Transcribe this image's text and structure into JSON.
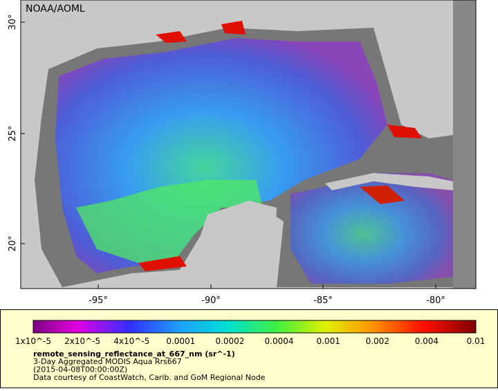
{
  "map": {
    "credit": "NOAA/AOML",
    "lat_labels": [
      "30°",
      "25°",
      "20°"
    ],
    "lon_labels": [
      "-95°",
      "-90°",
      "-85°",
      "-80°"
    ]
  },
  "legend": {
    "colorbar_labels": [
      "1x10^-5",
      "2x10^-5",
      "4x10^-5",
      "0.0001",
      "0.0002",
      "0.0004",
      "0.001",
      "0.002",
      "0.004",
      "0.01"
    ],
    "variable": "remote_sensing_reflectance_at_667_nm (sr^-1)",
    "lines": [
      "3-Day Aggregated MODIS Aqua Rrs667",
      "(2015-04-08T00:00:00Z)",
      "Data courtesy of CoastWatch, Carib. and GoM Regional Node"
    ]
  }
}
